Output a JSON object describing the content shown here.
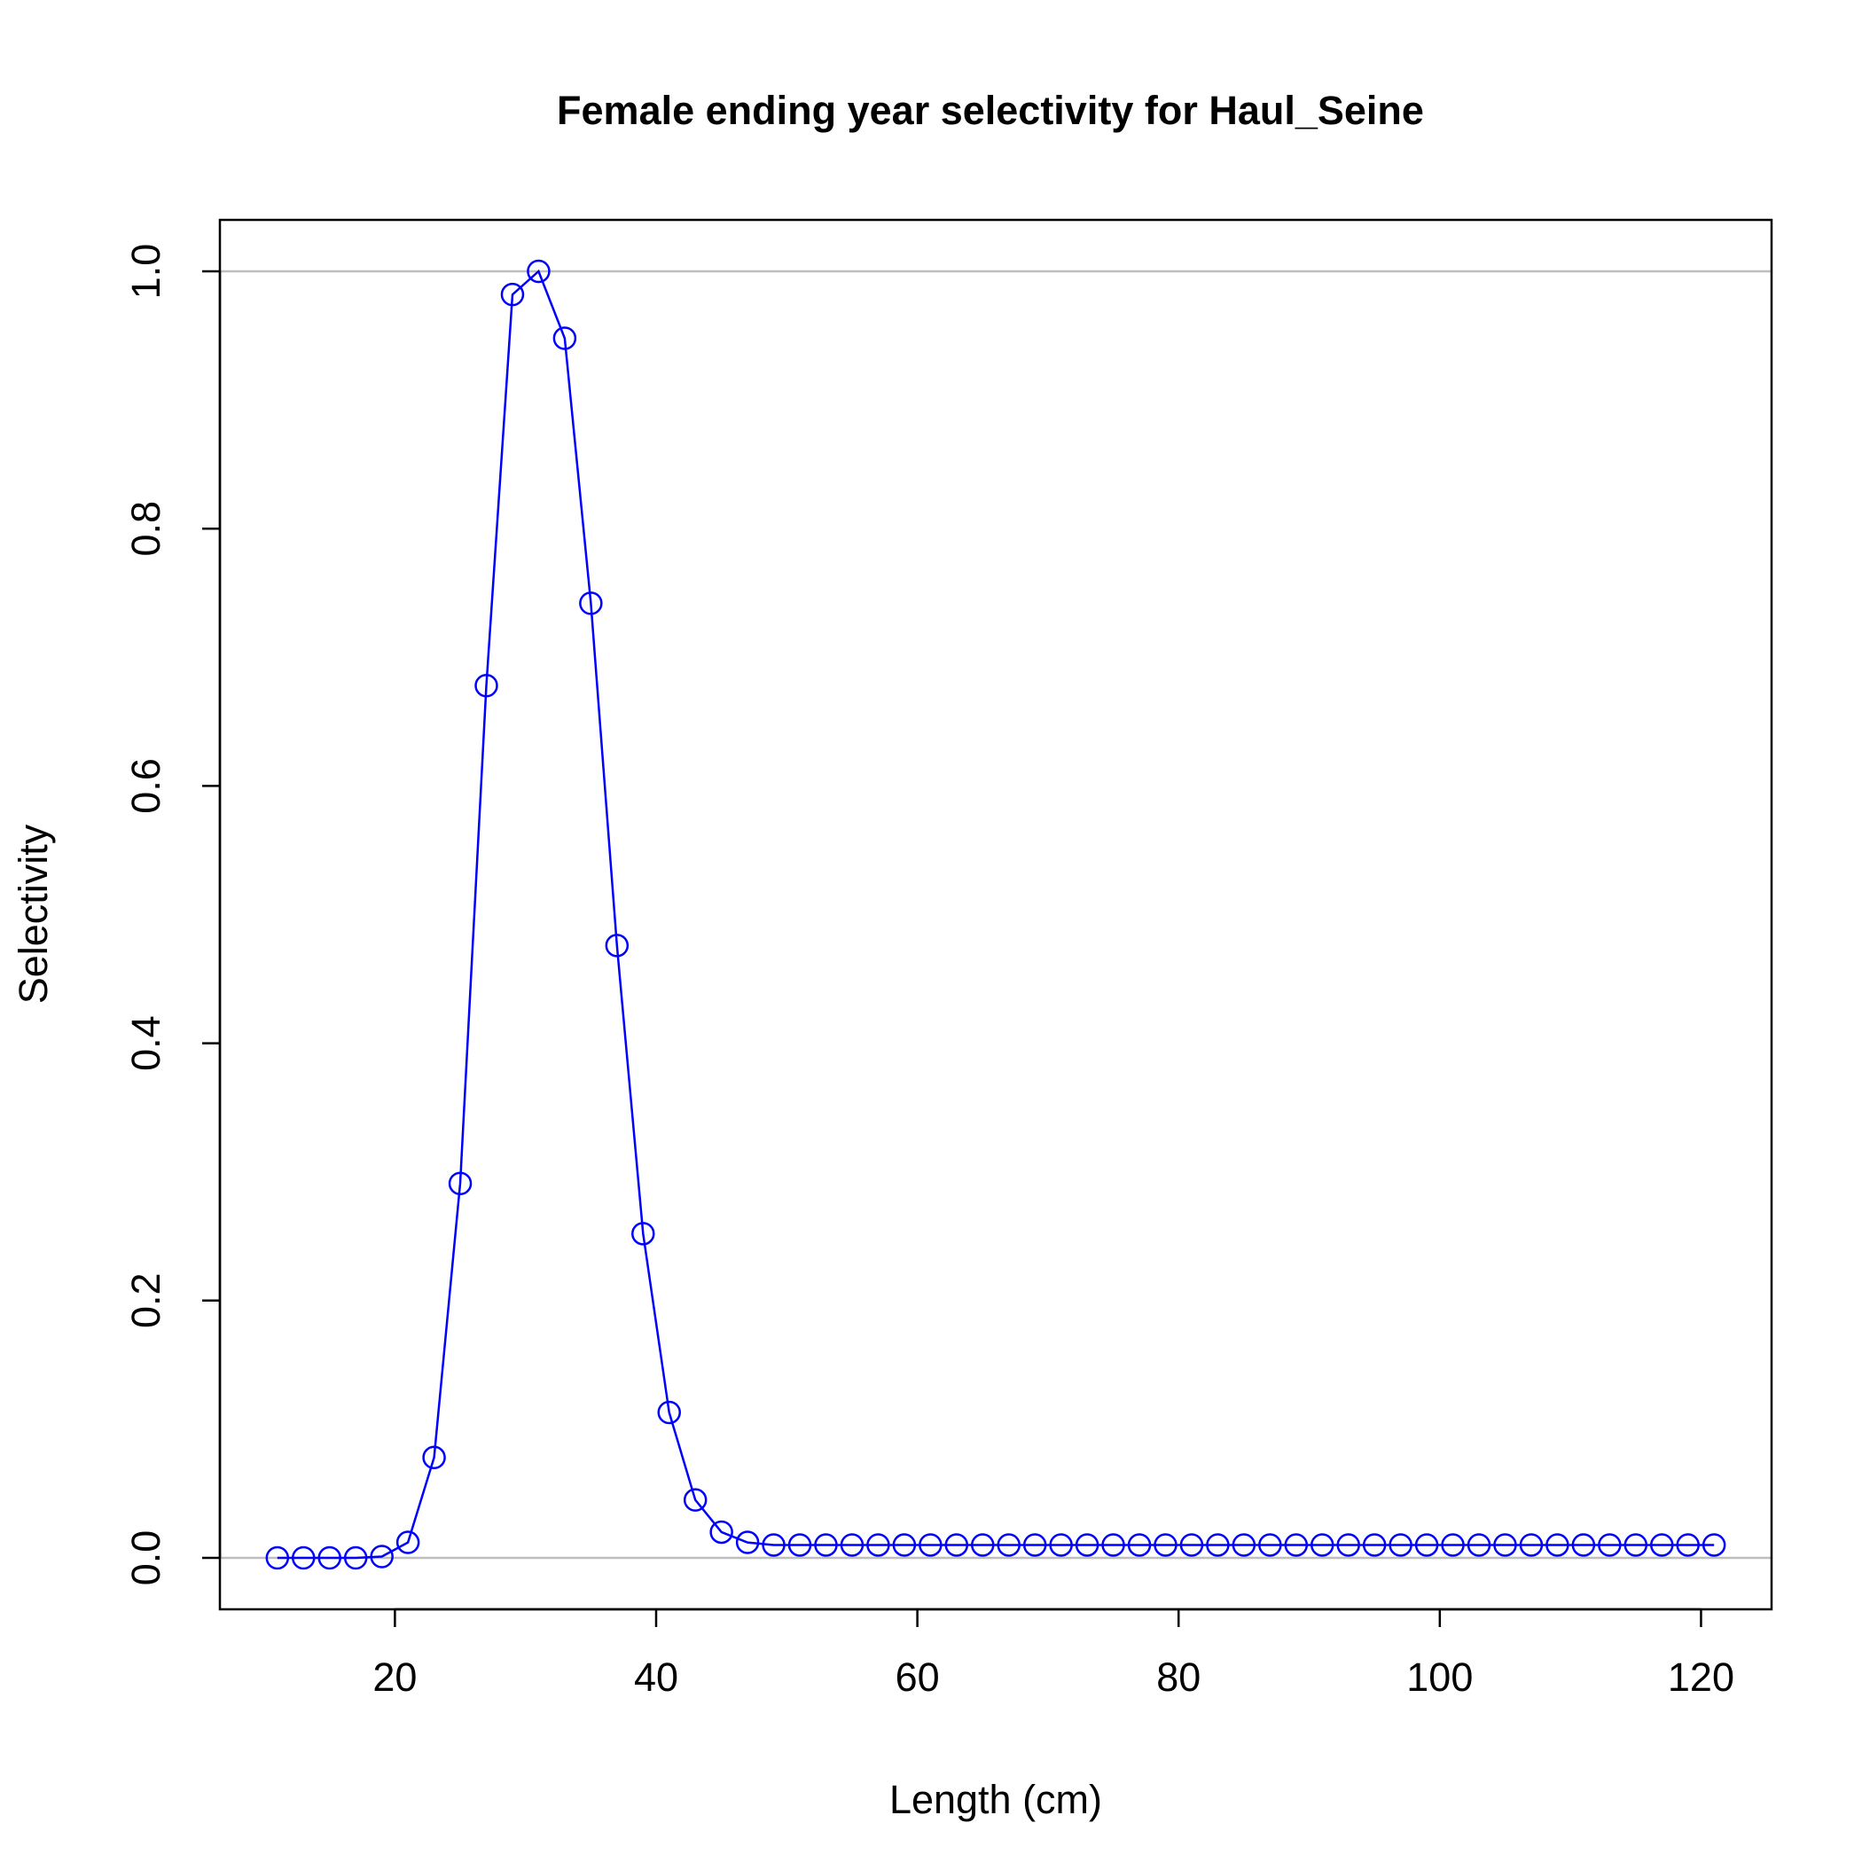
{
  "chart_data": {
    "type": "line",
    "title": "Female ending year selectivity for Haul_Seine",
    "xlabel": "Length (cm)",
    "ylabel": "Selectivity",
    "xlim": [
      6.6,
      125.4
    ],
    "ylim": [
      -0.04,
      1.04
    ],
    "xticks": [
      20,
      40,
      60,
      80,
      100,
      120
    ],
    "yticks": [
      0.0,
      0.2,
      0.4,
      0.6,
      0.8,
      1.0
    ],
    "xtick_labels": [
      "20",
      "40",
      "60",
      "80",
      "100",
      "120"
    ],
    "ytick_labels": [
      "0.0",
      "0.2",
      "0.4",
      "0.6",
      "0.8",
      "1.0"
    ],
    "reference_lines_y": [
      0,
      1
    ],
    "colors": {
      "series": "#0000ff",
      "reference": "#bebebe",
      "axis": "#000000"
    },
    "series": [
      {
        "x": [
          11,
          13,
          15,
          17,
          19,
          21,
          23,
          25,
          27,
          29,
          31,
          33,
          35,
          37,
          39,
          41,
          43,
          45,
          47,
          49,
          51,
          53,
          55,
          57,
          59,
          61,
          63,
          65,
          67,
          69,
          71,
          73,
          75,
          77,
          79,
          81,
          83,
          85,
          87,
          89,
          91,
          93,
          95,
          97,
          99,
          101,
          103,
          105,
          107,
          109,
          111,
          113,
          115,
          117,
          119,
          121
        ],
        "values": [
          0.0,
          0.0,
          0.0,
          0.0,
          0.001,
          0.012,
          0.078,
          0.291,
          0.678,
          0.982,
          1.0,
          0.948,
          0.742,
          0.476,
          0.252,
          0.113,
          0.045,
          0.02,
          0.012,
          0.01,
          0.01,
          0.01,
          0.01,
          0.01,
          0.01,
          0.01,
          0.01,
          0.01,
          0.01,
          0.01,
          0.01,
          0.01,
          0.01,
          0.01,
          0.01,
          0.01,
          0.01,
          0.01,
          0.01,
          0.01,
          0.01,
          0.01,
          0.01,
          0.01,
          0.01,
          0.01,
          0.01,
          0.01,
          0.01,
          0.01,
          0.01,
          0.01,
          0.01,
          0.01,
          0.01,
          0.01
        ]
      }
    ]
  }
}
